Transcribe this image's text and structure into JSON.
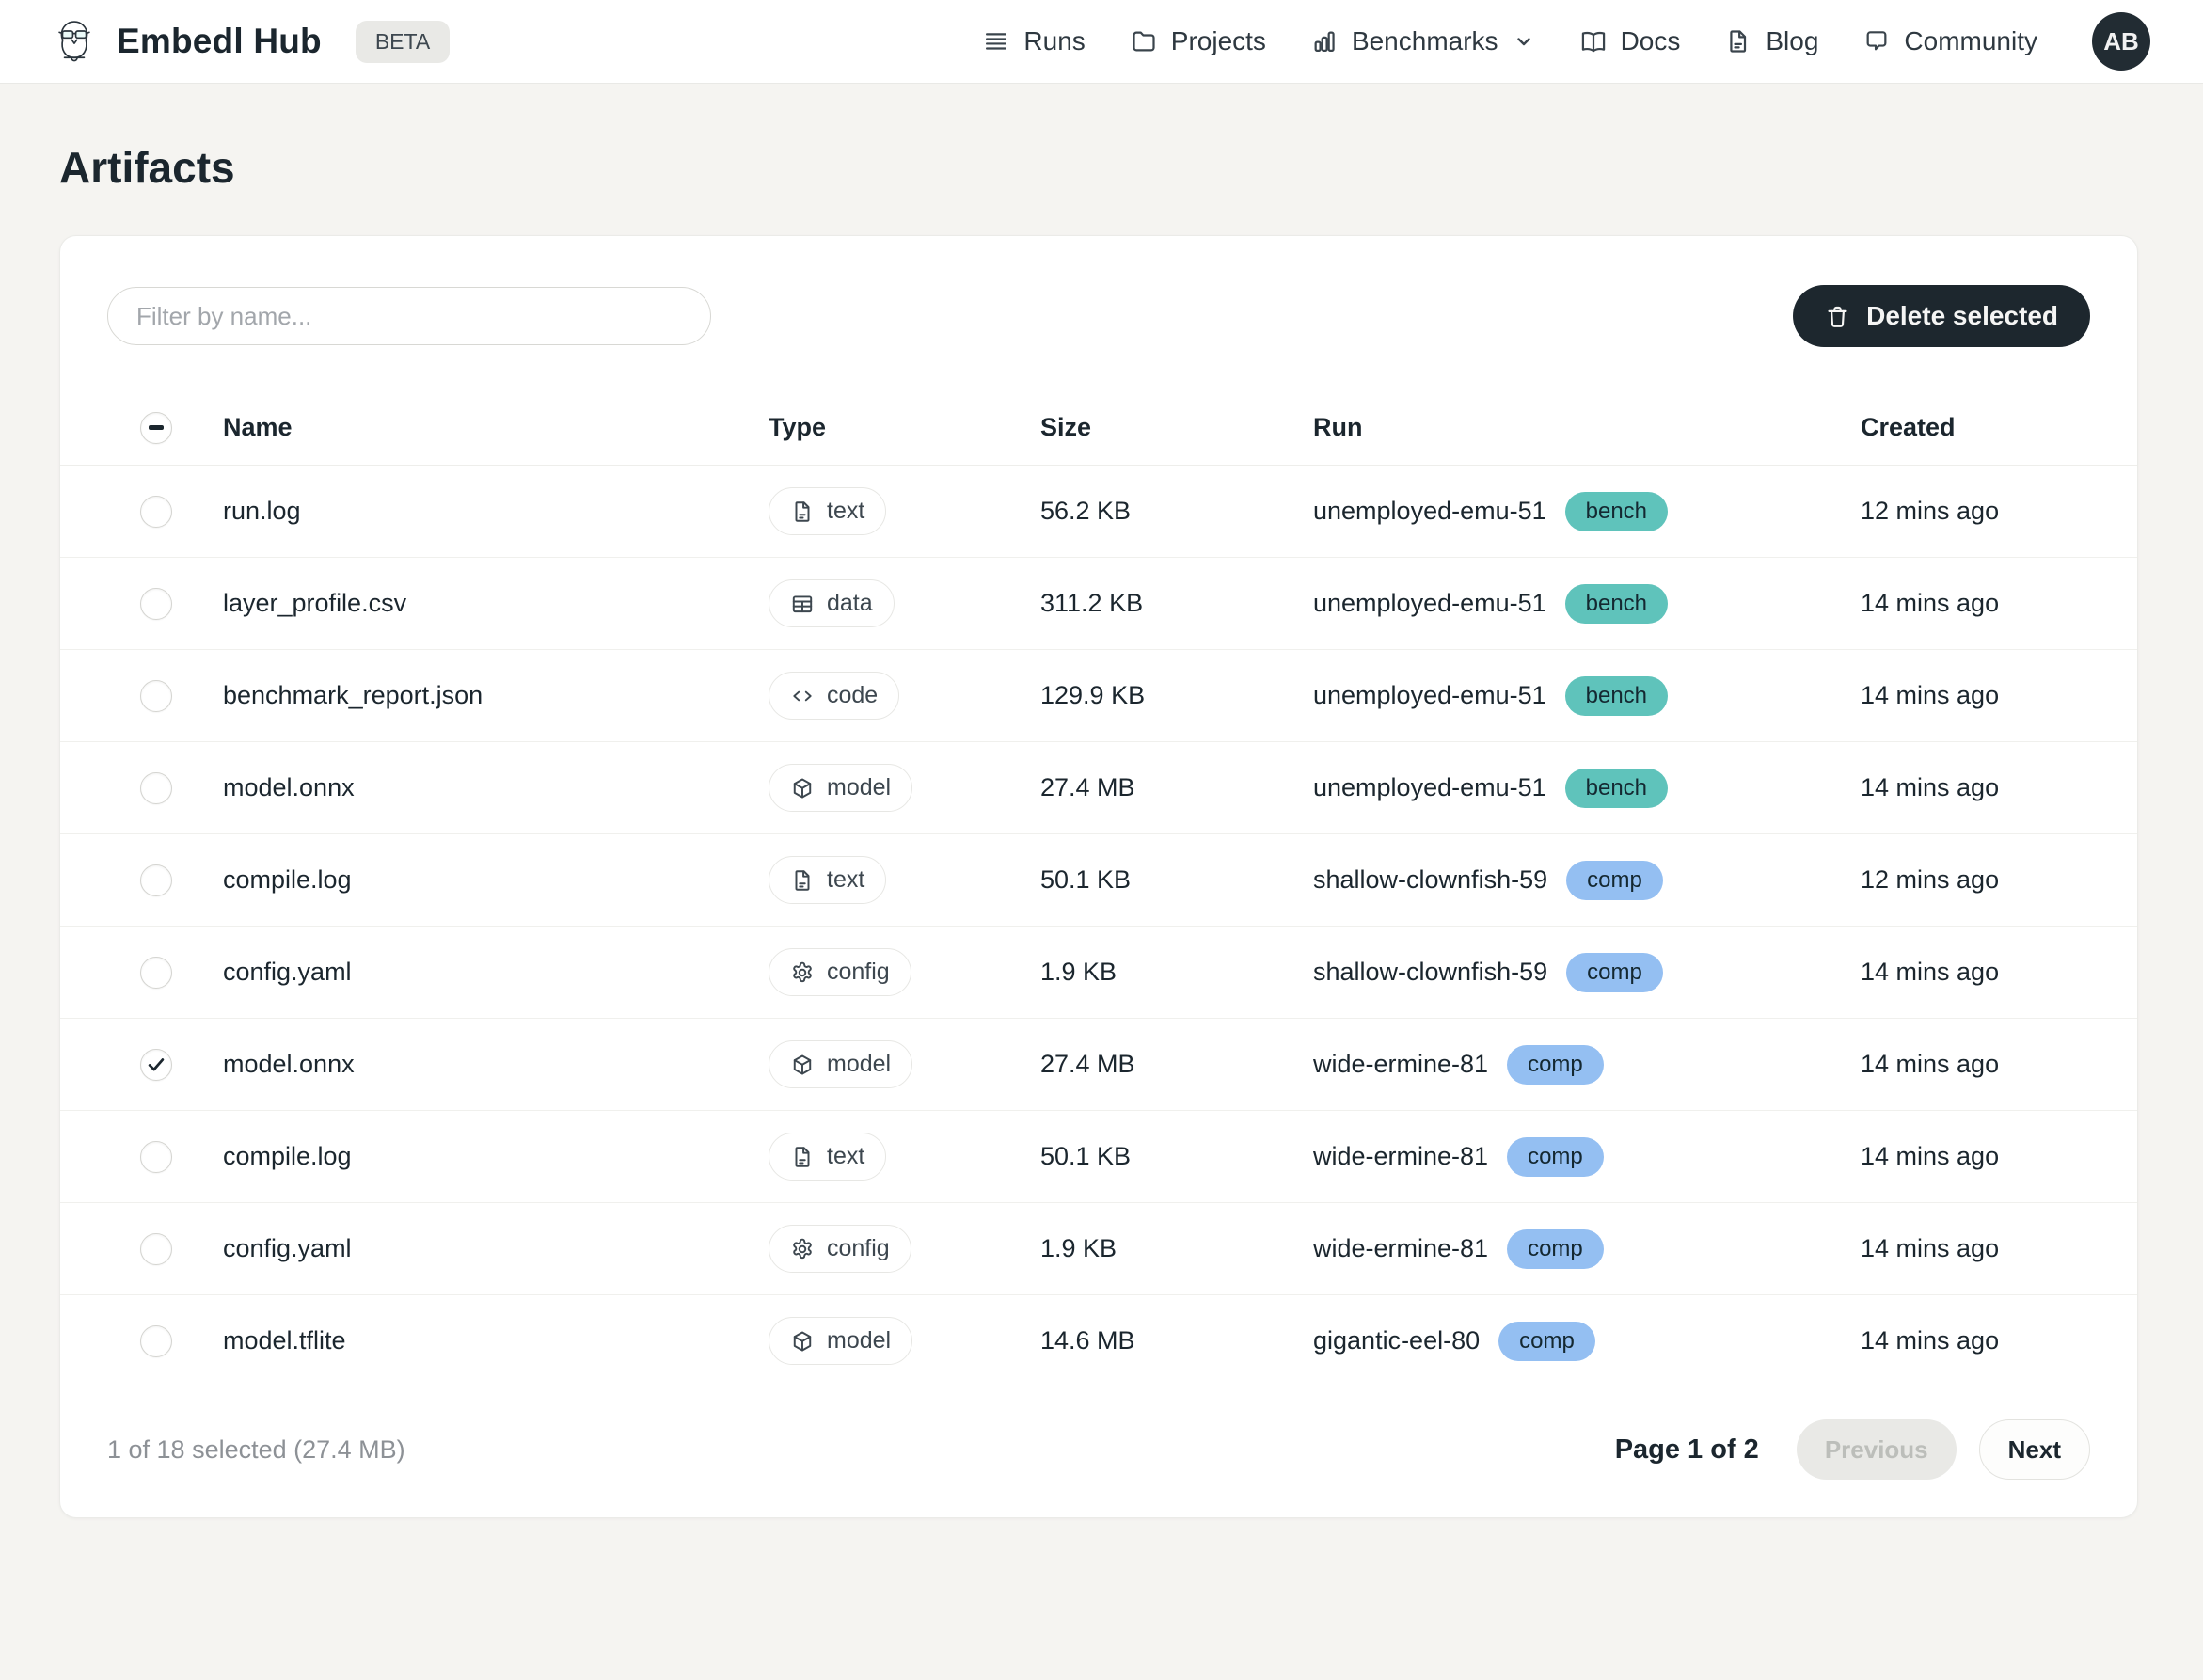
{
  "header": {
    "brand": "Embedl Hub",
    "badge": "BETA",
    "nav": [
      {
        "label": "Runs",
        "icon": "list-icon"
      },
      {
        "label": "Projects",
        "icon": "folder-icon"
      },
      {
        "label": "Benchmarks",
        "icon": "bar-chart-icon",
        "has_dropdown": true
      },
      {
        "label": "Docs",
        "icon": "book-open-icon"
      },
      {
        "label": "Blog",
        "icon": "file-icon"
      },
      {
        "label": "Community",
        "icon": "chat-icon"
      }
    ],
    "avatar_initials": "AB"
  },
  "page": {
    "title": "Artifacts"
  },
  "toolbar": {
    "filter_placeholder": "Filter by name...",
    "delete_label": "Delete selected"
  },
  "table": {
    "columns": [
      "Name",
      "Type",
      "Size",
      "Run",
      "Created"
    ],
    "header_checkbox_state": "indeterminate",
    "rows": [
      {
        "name": "run.log",
        "type": "text",
        "size": "56.2 KB",
        "run": "unemployed-emu-51",
        "run_badge": "bench",
        "created": "12 mins ago",
        "checked": false
      },
      {
        "name": "layer_profile.csv",
        "type": "data",
        "size": "311.2 KB",
        "run": "unemployed-emu-51",
        "run_badge": "bench",
        "created": "14 mins ago",
        "checked": false
      },
      {
        "name": "benchmark_report.json",
        "type": "code",
        "size": "129.9 KB",
        "run": "unemployed-emu-51",
        "run_badge": "bench",
        "created": "14 mins ago",
        "checked": false
      },
      {
        "name": "model.onnx",
        "type": "model",
        "size": "27.4 MB",
        "run": "unemployed-emu-51",
        "run_badge": "bench",
        "created": "14 mins ago",
        "checked": false
      },
      {
        "name": "compile.log",
        "type": "text",
        "size": "50.1 KB",
        "run": "shallow-clownfish-59",
        "run_badge": "comp",
        "created": "12 mins ago",
        "checked": false
      },
      {
        "name": "config.yaml",
        "type": "config",
        "size": "1.9 KB",
        "run": "shallow-clownfish-59",
        "run_badge": "comp",
        "created": "14 mins ago",
        "checked": false
      },
      {
        "name": "model.onnx",
        "type": "model",
        "size": "27.4 MB",
        "run": "wide-ermine-81",
        "run_badge": "comp",
        "created": "14 mins ago",
        "checked": true
      },
      {
        "name": "compile.log",
        "type": "text",
        "size": "50.1 KB",
        "run": "wide-ermine-81",
        "run_badge": "comp",
        "created": "14 mins ago",
        "checked": false
      },
      {
        "name": "config.yaml",
        "type": "config",
        "size": "1.9 KB",
        "run": "wide-ermine-81",
        "run_badge": "comp",
        "created": "14 mins ago",
        "checked": false
      },
      {
        "name": "model.tflite",
        "type": "model",
        "size": "14.6 MB",
        "run": "gigantic-eel-80",
        "run_badge": "comp",
        "created": "14 mins ago",
        "checked": false
      }
    ]
  },
  "footer": {
    "selection_summary": "1 of 18 selected (27.4 MB)",
    "page_info": "Page 1 of 2",
    "previous_label": "Previous",
    "next_label": "Next"
  },
  "colors": {
    "badge_bench_bg": "#5fc3bb",
    "badge_comp_bg": "#94bff2",
    "button_dark_bg": "#1d272e",
    "page_bg": "#f5f4f1"
  }
}
